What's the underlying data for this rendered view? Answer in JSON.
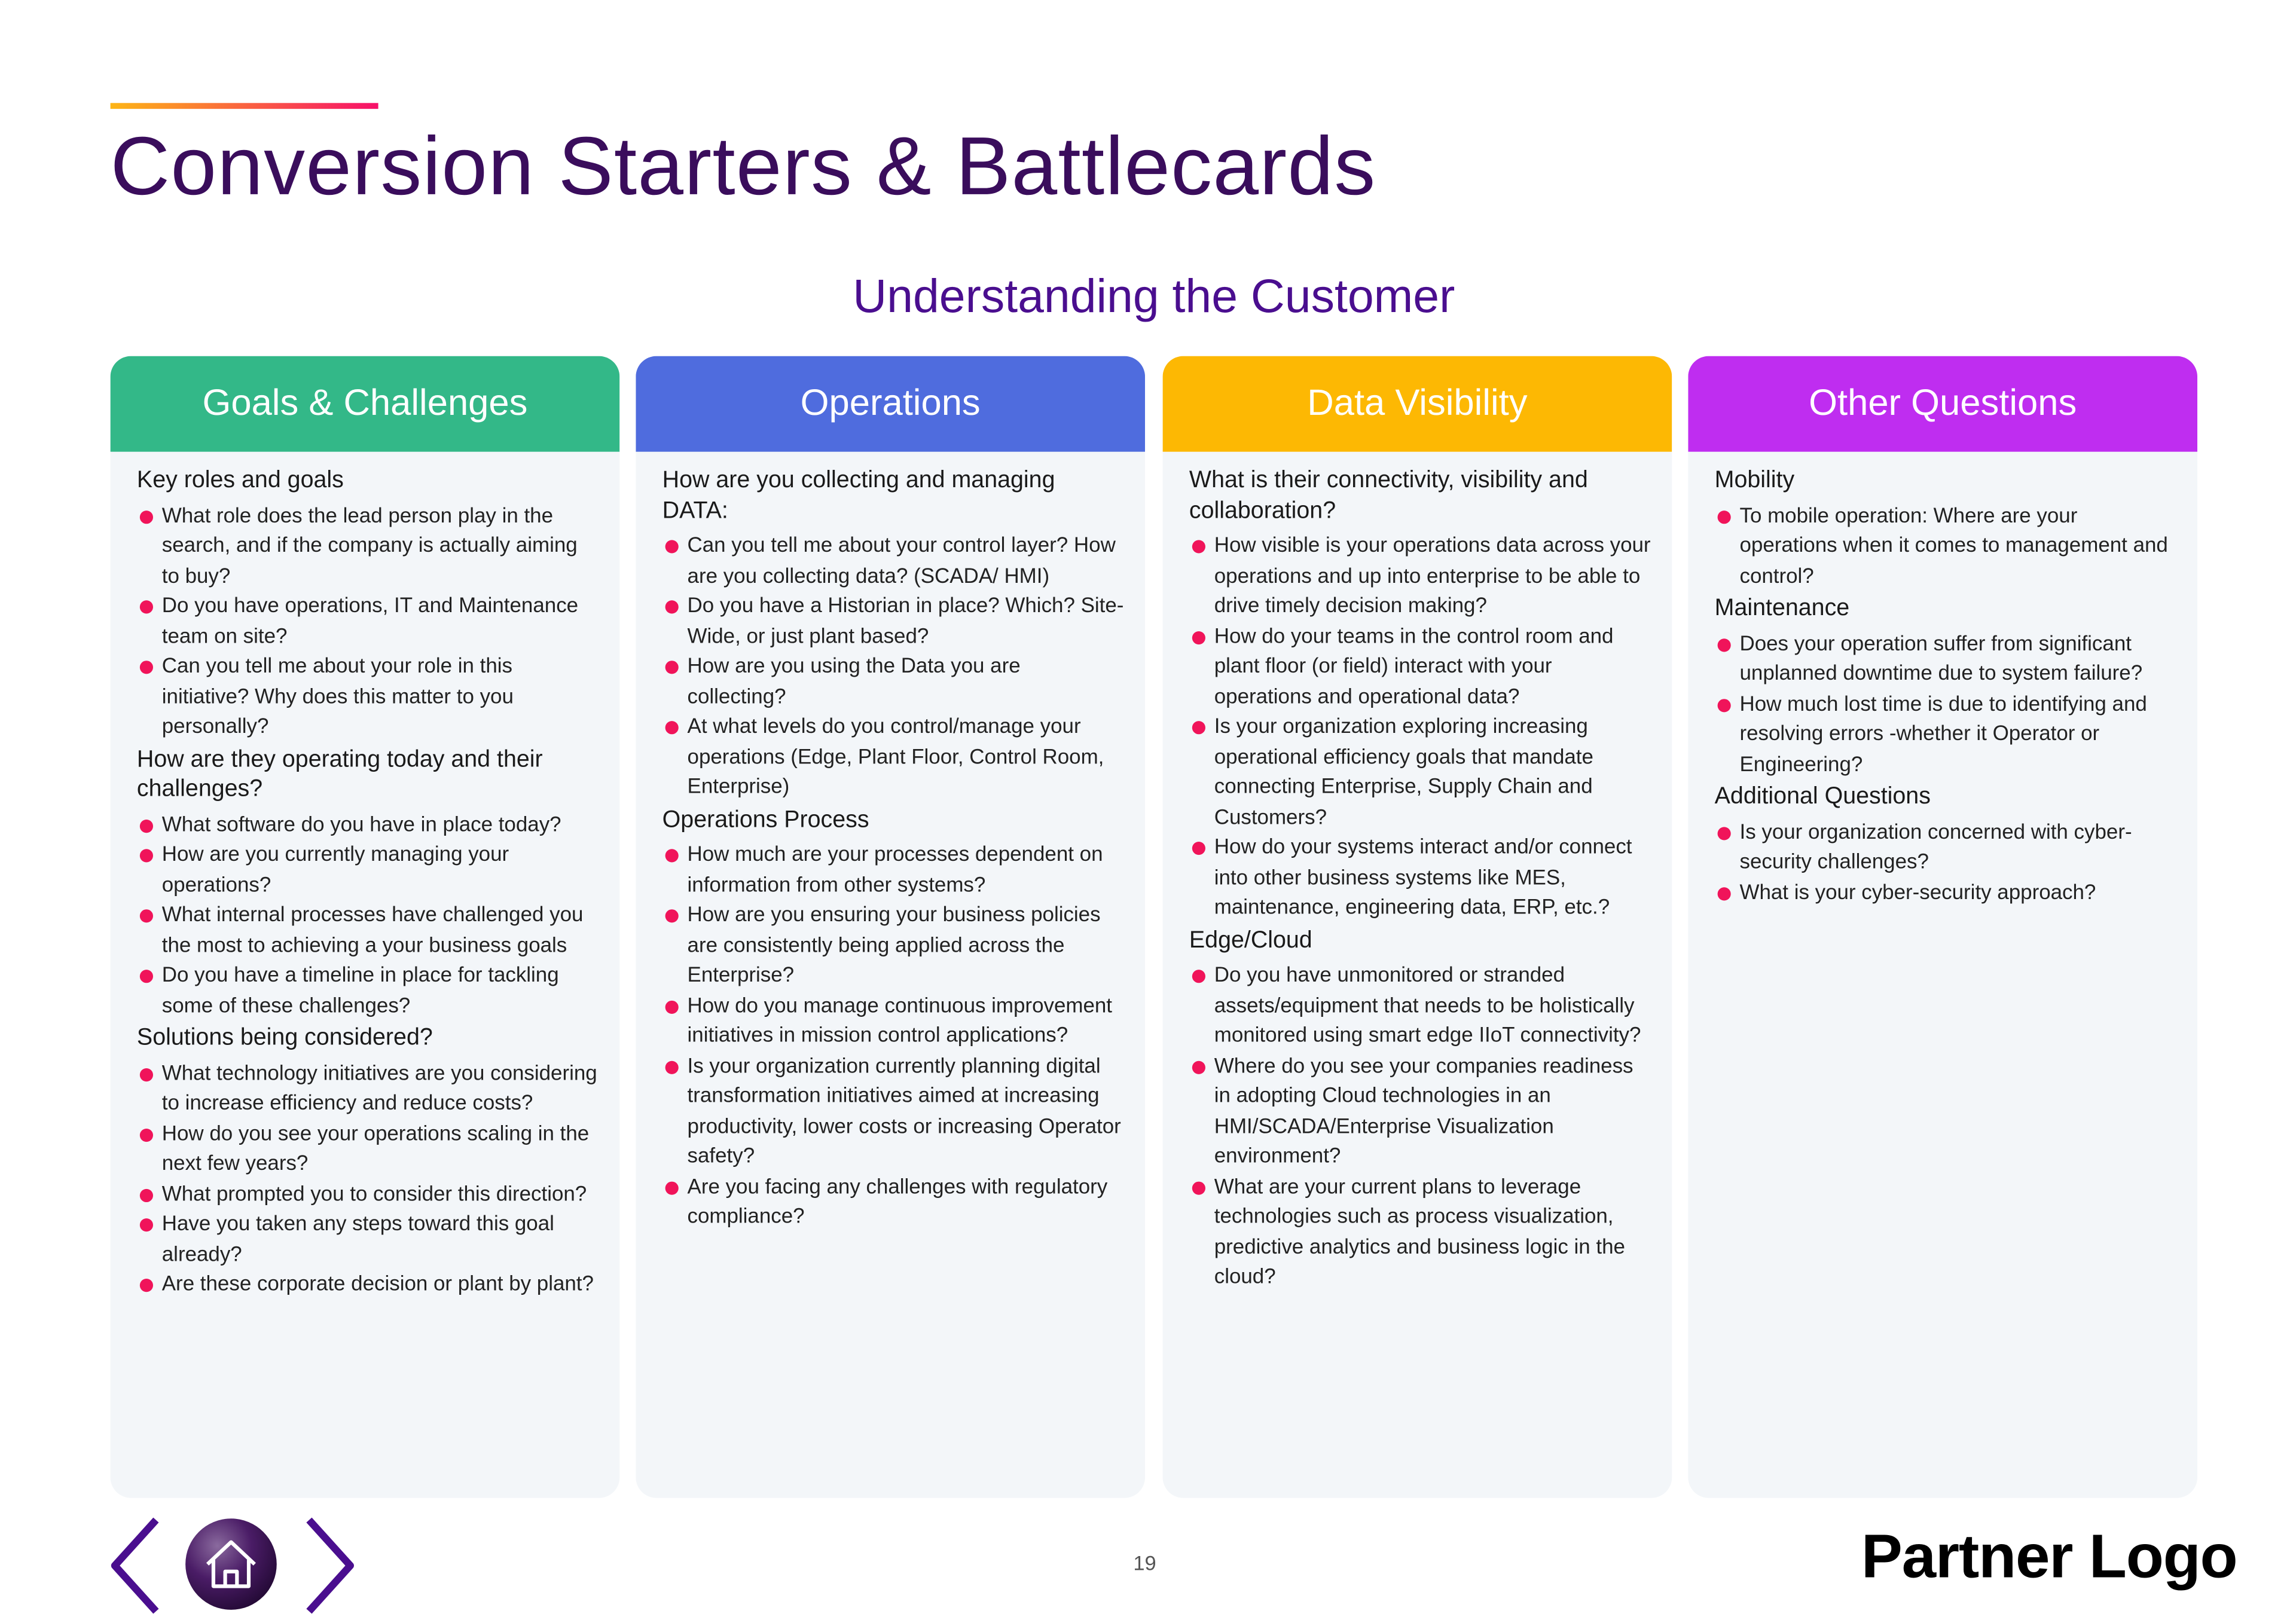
{
  "header": {
    "title": "Conversion Starters & Battlecards",
    "subtitle": "Understanding the Customer"
  },
  "colors": {
    "accent_gradient": [
      "#fdb515",
      "#f7106a"
    ],
    "title": "#3a0d5c",
    "subtitle": "#4a0e8f",
    "bullet": "#f0145a",
    "card_bg": "#f3f6f9"
  },
  "cards": [
    {
      "title": "Goals & Challenges",
      "color": "#33b888",
      "sections": [
        {
          "heading": "Key roles and goals",
          "items": [
            "What role does the lead person play in the search, and if the company is actually aiming to buy?",
            "Do you have operations, IT  and Maintenance team on site?",
            "Can you tell me about your role in this initiative? Why does this matter to you personally?"
          ]
        },
        {
          "heading": "How are they operating today and their challenges?",
          "items": [
            "What software do you have in place today?",
            "How are you currently managing your operations?",
            "What internal processes have challenged you the most to achieving a your business goals",
            "Do you have a timeline in place for tackling some of these challenges?"
          ]
        },
        {
          "heading": "Solutions being considered?",
          "items": [
            "What technology initiatives are you considering to increase efficiency and reduce costs?",
            "How do you see your operations scaling in the next few years?",
            "What prompted you to consider this direction?",
            "Have you taken any steps toward this goal already?",
            "Are these corporate decision or plant by plant?"
          ]
        }
      ]
    },
    {
      "title": "Operations",
      "color": "#4f6cde",
      "sections": [
        {
          "heading": "How are you collecting and managing DATA:",
          "items": [
            "Can you tell me about your control layer? How are you collecting data? (SCADA/ HMI)",
            "Do you have a Historian in place? Which? Site-Wide, or just plant based?",
            "How are you using the Data you are collecting?",
            "At what levels do you control/manage your operations (Edge, Plant Floor, Control Room, Enterprise)"
          ]
        },
        {
          "heading": "Operations Process",
          "items": [
            "How much are your processes dependent on information from other systems?",
            "How are you ensuring your business policies are consistently being applied across the Enterprise?",
            "How do you manage continuous improvement initiatives in mission control applications?",
            "Is your organization currently planning digital transformation initiatives aimed at increasing productivity, lower costs or increasing Operator safety?",
            "Are you facing any challenges with regulatory compliance?"
          ]
        }
      ]
    },
    {
      "title": "Data Visibility",
      "color": "#fdb803",
      "sections": [
        {
          "heading": "What is their connectivity, visibility and collaboration?",
          "items": [
            "How visible is your operations data across your operations and up into enterprise to be able to drive timely decision making?",
            "How do your teams in the control room and plant floor (or field) interact with your operations and operational data?",
            "Is your organization exploring increasing operational efficiency goals that mandate connecting  Enterprise, Supply Chain and Customers?",
            "How do your systems interact and/or connect into other business systems like MES, maintenance, engineering data, ERP, etc.?"
          ]
        },
        {
          "heading": "Edge/Cloud",
          "items": [
            "Do you have unmonitored or stranded assets/equipment that needs to be holistically monitored using smart edge IIoT connectivity?",
            "Where do you see your companies readiness in adopting Cloud technologies in an HMI/SCADA/Enterprise Visualization environment?",
            "What are your current plans to leverage technologies such as process visualization, predictive analytics and business logic in the cloud?"
          ]
        }
      ]
    },
    {
      "title": "Other Questions",
      "color": "#bf2df0",
      "sections": [
        {
          "heading": "Mobility",
          "items": [
            "To mobile operation: Where are your operations when it comes to management and control?"
          ]
        },
        {
          "heading": "Maintenance",
          "items": [
            "Does your operation suffer from significant unplanned downtime due to system failure?",
            "How much lost time is due to identifying and resolving errors -whether it Operator or Engineering?"
          ]
        },
        {
          "heading": "Additional Questions",
          "items": [
            "Is your organization concerned with cyber-security challenges?",
            "What is your cyber-security approach?"
          ]
        }
      ]
    }
  ],
  "footer": {
    "page_number": "19",
    "partner_logo": "Partner Logo",
    "icons": [
      "chevron-left-icon",
      "home-icon",
      "chevron-right-icon"
    ]
  }
}
